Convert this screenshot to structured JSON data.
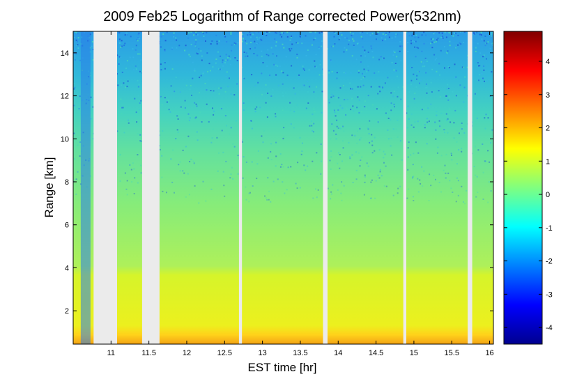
{
  "chart_data": {
    "type": "heatmap",
    "title": "2009 Feb25  Logarithm of Range corrected Power(532nm)",
    "xlabel": "EST time [hr]",
    "ylabel": "Range [km]",
    "xlim": [
      10.5,
      16.05
    ],
    "ylim": [
      0.45,
      15.0
    ],
    "x_ticks": [
      11,
      11.5,
      12,
      12.5,
      13,
      13.5,
      14,
      14.5,
      15,
      15.5,
      16
    ],
    "x_tick_labels": [
      "11",
      "11.5",
      "12",
      "12.5",
      "13",
      "13.5",
      "14",
      "14.5",
      "15",
      "15.5",
      "16"
    ],
    "y_ticks": [
      2,
      4,
      6,
      8,
      10,
      12,
      14
    ],
    "y_tick_labels": [
      "2",
      "4",
      "6",
      "8",
      "10",
      "12",
      "14"
    ],
    "colorbar": {
      "colormap": "jet",
      "clim": [
        -4.5,
        4.9
      ],
      "ticks": [
        -4,
        -3,
        -2,
        -1,
        0,
        1,
        2,
        3,
        4
      ],
      "tick_labels": [
        "-4",
        "-3",
        "-2",
        "-1",
        "0",
        "1",
        "2",
        "3",
        "4"
      ]
    },
    "data_gaps": [
      [
        10.77,
        11.08
      ],
      [
        11.41,
        11.64
      ],
      [
        12.69,
        12.73
      ],
      [
        13.8,
        13.86
      ],
      [
        14.86,
        14.9
      ],
      [
        15.71,
        15.77
      ]
    ],
    "layers": [
      {
        "range_km": [
          0.45,
          0.9
        ],
        "value": 1.8
      },
      {
        "range_km": [
          0.9,
          3.9
        ],
        "value": 1.0
      },
      {
        "range_km": [
          3.9,
          10.0
        ],
        "value": 0.2
      },
      {
        "range_km": [
          10.0,
          15.0
        ],
        "value": -0.8
      }
    ],
    "grid": false,
    "legend": "colorbar-right"
  }
}
